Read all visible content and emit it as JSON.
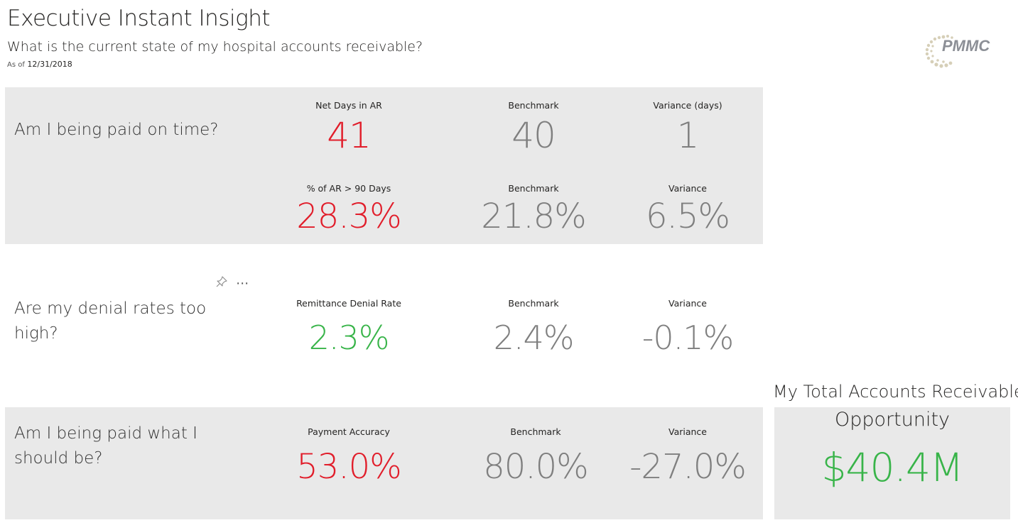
{
  "header": {
    "title": "Executive Instant Insight",
    "subtitle": "What is the current state of my hospital accounts receivable?",
    "as_of_label": "As of",
    "as_of_date": "12/31/2018",
    "logo_text": "PMMC"
  },
  "section1": {
    "question": "Am I being paid on time?",
    "row1": {
      "metric_label": "Net Days in AR",
      "metric_value": "41",
      "benchmark_label": "Benchmark",
      "benchmark_value": "40",
      "variance_label": "Variance (days)",
      "variance_value": "1"
    },
    "row2": {
      "metric_label": "% of AR > 90 Days",
      "metric_value": "28.3%",
      "benchmark_label": "Benchmark",
      "benchmark_value": "21.8%",
      "variance_label": "Variance",
      "variance_value": "6.5%"
    }
  },
  "section2": {
    "question_line1": "Are my denial rates too",
    "question_line2": "high?",
    "metric_label": "Remittance Denial Rate",
    "metric_value": "2.3%",
    "benchmark_label": "Benchmark",
    "benchmark_value": "2.4%",
    "variance_label": "Variance",
    "variance_value": "-0.1%"
  },
  "section3": {
    "question_line1": "Am I being paid what I",
    "question_line2": "should be?",
    "metric_label": "Payment Accuracy",
    "metric_value": "53.0%",
    "benchmark_label": "Benchmark",
    "benchmark_value": "80.0%",
    "variance_label": "Variance",
    "variance_value": "-27.0%"
  },
  "total": {
    "title": "My Total Accounts Receivable",
    "subtitle": "Opportunity",
    "value": "$40.4M"
  },
  "visual_header": {
    "pin_icon": "pin-icon",
    "more_icon": "more-options-icon",
    "more_glyph": "⋯"
  },
  "colors": {
    "bad": "#e11d2a",
    "good": "#38b449",
    "neutral": "#7f7f7f",
    "panel": "#e9e9e9"
  }
}
